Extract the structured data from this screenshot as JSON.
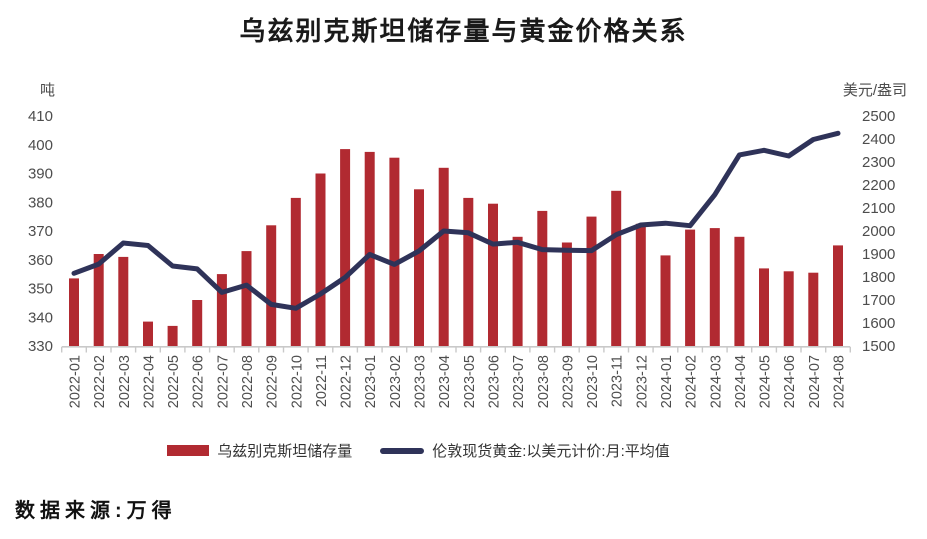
{
  "title": "乌兹别克斯坦储存量与黄金价格关系",
  "source_note": "数据来源:万得",
  "colors": {
    "bar": "#B12A31",
    "line": "#2F3359",
    "axis_text": "#4D4D4D",
    "axis_line": "#C9C9C9",
    "title_text": "#1A1A1A"
  },
  "chart_data": {
    "type": "combo-bar-line",
    "title": "乌兹别克斯坦储存量与黄金价格关系",
    "grid": false,
    "legend_position": "bottom",
    "categories": [
      "2022-01",
      "2022-02",
      "2022-03",
      "2022-04",
      "2022-05",
      "2022-06",
      "2022-07",
      "2022-08",
      "2022-09",
      "2022-10",
      "2022-11",
      "2022-12",
      "2023-01",
      "2023-02",
      "2023-03",
      "2023-04",
      "2023-05",
      "2023-06",
      "2023-07",
      "2023-08",
      "2023-09",
      "2023-10",
      "2023-11",
      "2023-12",
      "2024-01",
      "2024-02",
      "2024-03",
      "2024-04",
      "2024-05",
      "2024-06",
      "2024-07",
      "2024-08"
    ],
    "series": [
      {
        "name": "乌兹别克斯坦储存量",
        "type": "bar",
        "axis": "left",
        "color": "#B12A31",
        "values": [
          353.5,
          362,
          361,
          338.5,
          337,
          346,
          355,
          363,
          372,
          381.5,
          390,
          398.5,
          397.5,
          395.5,
          384.5,
          392,
          381.5,
          379.5,
          368,
          377,
          366,
          375,
          384,
          372.5,
          361.5,
          370.5,
          371,
          368,
          357,
          356,
          355.5,
          365
        ]
      },
      {
        "name": "伦敦现货黄金:以美元计价:月:平均值",
        "type": "line",
        "axis": "right",
        "color": "#2F3359",
        "values": [
          1816,
          1856,
          1948,
          1937,
          1848,
          1835,
          1733,
          1765,
          1681,
          1664,
          1726,
          1798,
          1898,
          1855,
          1913,
          2000,
          1992,
          1943,
          1951,
          1919,
          1916,
          1915,
          1984,
          2026,
          2034,
          2023,
          2158,
          2331,
          2351,
          2326,
          2398,
          2425
        ]
      }
    ],
    "left_axis": {
      "unit": "吨",
      "min": 330,
      "max": 410,
      "step": 10,
      "ticks": [
        410,
        400,
        390,
        380,
        370,
        360,
        350,
        340,
        330
      ]
    },
    "right_axis": {
      "unit": "美元/盎司",
      "min": 1500,
      "max": 2500,
      "step": 100,
      "ticks": [
        2500,
        2400,
        2300,
        2200,
        2100,
        2000,
        1900,
        1800,
        1700,
        1600,
        1500
      ]
    }
  }
}
